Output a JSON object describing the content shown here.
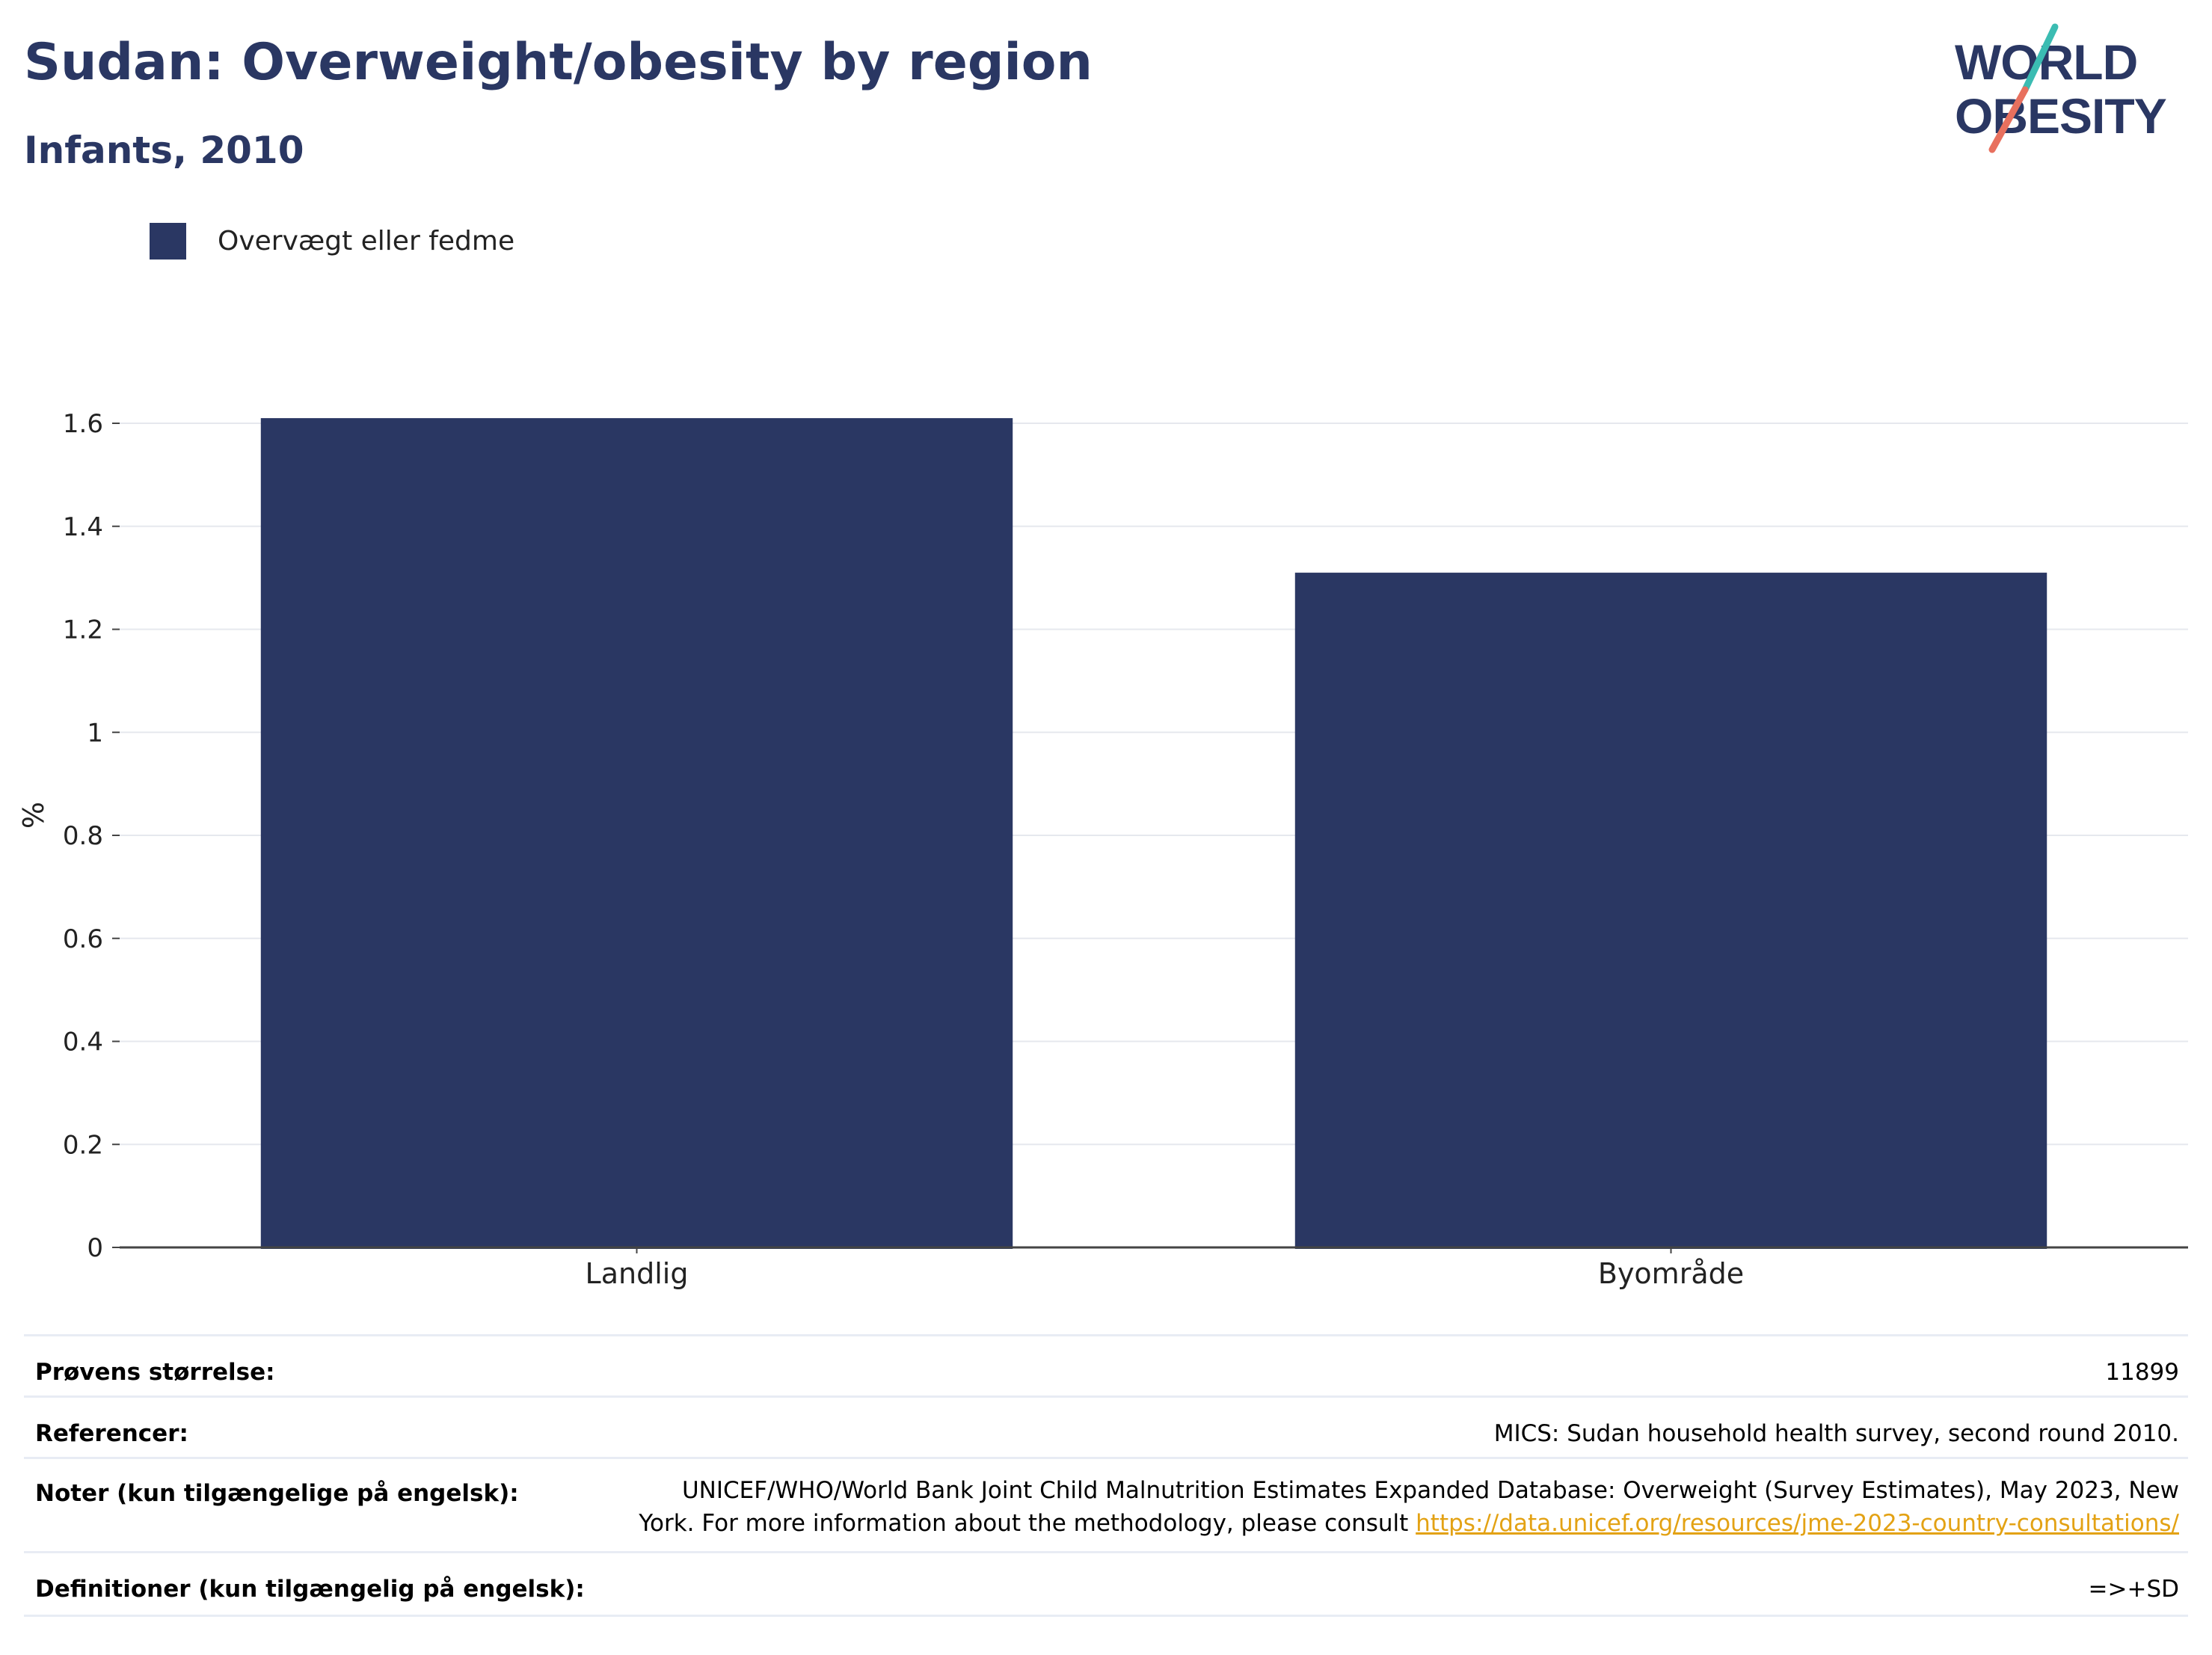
{
  "header": {
    "title": "Sudan: Overweight/obesity by region",
    "subtitle": "Infants, 2010",
    "logo_text_line1": "WORLD",
    "logo_text_line2": "OBESITY"
  },
  "legend": {
    "label": "Overvægt eller fedme",
    "color": "#2a3763"
  },
  "chart_data": {
    "type": "bar",
    "categories": [
      "Landlig",
      "Byområde"
    ],
    "series": [
      {
        "name": "Overvægt eller fedme",
        "values": [
          1.61,
          1.31
        ],
        "color": "#2a3763"
      }
    ],
    "ylabel": "%",
    "xlabel": "",
    "ylim": [
      0,
      1.6
    ],
    "yticks": [
      0,
      0.2,
      0.4,
      0.6,
      0.8,
      1,
      1.2,
      1.4,
      1.6
    ],
    "ytick_labels": [
      "0",
      "0.2",
      "0.4",
      "0.6",
      "0.8",
      "1",
      "1.2",
      "1.4",
      "1.6"
    ],
    "grid": true,
    "legend_position": "top-left"
  },
  "info": {
    "sample_label": "Prøvens størrelse:",
    "sample_value": "11899",
    "refs_label": "Referencer:",
    "refs_value": "MICS: Sudan household health survey, second round 2010.",
    "notes_label": "Noter (kun tilgængelige på engelsk):",
    "notes_line1": "UNICEF/WHO/World Bank Joint Child Malnutrition Estimates Expanded Database: Overweight (Survey Estimates), May 2023, New",
    "notes_line2_text": "York. For more information about the methodology, please consult ",
    "notes_link": "https://data.unicef.org/resources/jme-2023-country-consultations/",
    "defs_label": "Definitioner (kun tilgængelig på engelsk):",
    "defs_value": "=>+SD",
    "link_color": "#e3a214"
  }
}
